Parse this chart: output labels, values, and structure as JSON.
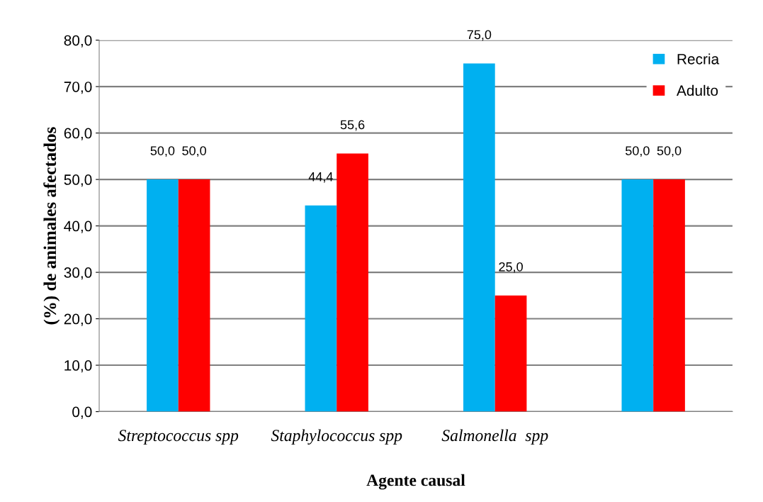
{
  "chart_data": {
    "type": "bar",
    "xlabel": "Agente causal",
    "ylabel": "(%) de animales afectados",
    "categories": [
      "Streptococcus spp",
      "Staphylococcus spp",
      "Salmonella  spp",
      null
    ],
    "series": [
      {
        "name": "Recria",
        "color": "#00b0f0",
        "values": [
          50.0,
          44.4,
          75.0,
          50.0
        ],
        "value_labels": [
          "50,0",
          "44,4",
          "75,0",
          "50,0"
        ]
      },
      {
        "name": "Adulto",
        "color": "#ff0000",
        "values": [
          50.0,
          55.6,
          25.0,
          50.0
        ],
        "value_labels": [
          "50,0",
          "55,6",
          "25,0",
          "50,0"
        ]
      }
    ],
    "ylim": [
      0,
      80
    ],
    "yticks": [
      {
        "value": 0,
        "label": "0,0"
      },
      {
        "value": 10,
        "label": "10,0"
      },
      {
        "value": 20,
        "label": "20,0"
      },
      {
        "value": 30,
        "label": "30,0"
      },
      {
        "value": 40,
        "label": "40,0"
      },
      {
        "value": 50,
        "label": "50,0"
      },
      {
        "value": 60,
        "label": "60,0"
      },
      {
        "value": 70,
        "label": "70,0"
      },
      {
        "value": 80,
        "label": "80,0"
      }
    ],
    "grid": "y",
    "legend": "top right"
  }
}
